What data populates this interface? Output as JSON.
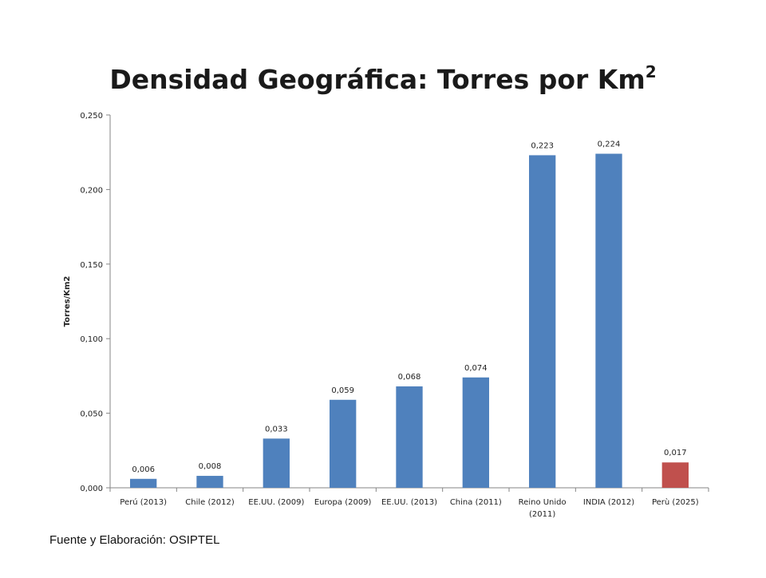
{
  "slide": {
    "title": "Densidad Geográfica: Torres por Km",
    "title_superscript": "2",
    "footnote": "Fuente y Elaboración: OSIPTEL"
  },
  "chart_data": {
    "type": "bar",
    "ylabel": "Torres/Km2",
    "ylim": [
      0,
      0.25
    ],
    "yticks": [
      "0,000",
      "0,050",
      "0,100",
      "0,150",
      "0,200",
      "0,250"
    ],
    "ytick_values": [
      0,
      0.05,
      0.1,
      0.15,
      0.2,
      0.25
    ],
    "categories": [
      [
        "Perú (2013)"
      ],
      [
        "Chile (2012)"
      ],
      [
        "EE.UU. (2009)"
      ],
      [
        "Europa (2009)"
      ],
      [
        "EE.UU. (2013)"
      ],
      [
        "China (2011)"
      ],
      [
        "Reino Unido",
        "(2011)"
      ],
      [
        "INDIA (2012)"
      ],
      [
        "Perù (2025)"
      ]
    ],
    "values": [
      0.006,
      0.008,
      0.033,
      0.059,
      0.068,
      0.074,
      0.223,
      0.224,
      0.017
    ],
    "data_labels": [
      "0,006",
      "0,008",
      "0,033",
      "0,059",
      "0,068",
      "0,074",
      "0,223",
      "0,224",
      "0,017"
    ],
    "colors": [
      "#4F81BD",
      "#4F81BD",
      "#4F81BD",
      "#4F81BD",
      "#4F81BD",
      "#4F81BD",
      "#4F81BD",
      "#4F81BD",
      "#C0504D"
    ],
    "grid": false,
    "legend": "none"
  }
}
